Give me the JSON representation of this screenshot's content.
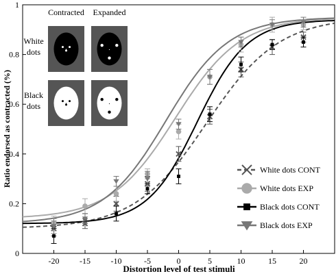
{
  "chart_data": {
    "type": "line",
    "title": "",
    "xlabel": "Distortion level of test stimuli",
    "ylabel": "Ratio endorsed as contracted (%)",
    "xlim": [
      -25,
      25
    ],
    "ylim": [
      0,
      1
    ],
    "x_ticks": [
      "-20",
      "-15",
      "-10",
      "-5",
      "0",
      "5",
      "10",
      "15",
      "20"
    ],
    "y_ticks": [
      "0",
      "0.2",
      "0.4",
      "0.6",
      "0.8",
      "1"
    ],
    "x": [
      -20,
      -15,
      -10,
      -5,
      0,
      5,
      10,
      15,
      20
    ],
    "grid": false,
    "legend_position": "bottom-right",
    "series": [
      {
        "name": "White dots CONT",
        "color": "#555555",
        "line": "dashed",
        "marker": "x",
        "values": [
          0.1,
          0.12,
          0.2,
          0.28,
          0.4,
          0.55,
          0.74,
          0.83,
          0.87
        ],
        "errors": [
          0.03,
          0.02,
          0.03,
          0.03,
          0.03,
          0.03,
          0.03,
          0.03,
          0.02
        ],
        "fit": {
          "min": 0.1,
          "max": 0.95,
          "mid": 4.5,
          "scale": 5.8
        }
      },
      {
        "name": "White dots EXP",
        "color": "#aaaaaa",
        "line": "solid",
        "marker": "circle",
        "values": [
          0.12,
          0.19,
          0.24,
          0.32,
          0.49,
          0.71,
          0.84,
          0.92,
          0.92
        ],
        "errors": [
          0.03,
          0.03,
          0.03,
          0.02,
          0.03,
          0.03,
          0.03,
          0.03,
          0.02
        ],
        "fit": {
          "min": 0.14,
          "max": 0.95,
          "mid": -0.5,
          "scale": 5.2
        }
      },
      {
        "name": "Black dots CONT",
        "color": "#000000",
        "line": "solid",
        "marker": "square",
        "values": [
          0.07,
          0.14,
          0.16,
          0.26,
          0.31,
          0.56,
          0.76,
          0.84,
          0.85
        ],
        "errors": [
          0.03,
          0.02,
          0.03,
          0.02,
          0.03,
          0.03,
          0.03,
          0.02,
          0.02
        ],
        "fit": {
          "min": 0.12,
          "max": 0.94,
          "mid": 3.0,
          "scale": 4.0
        }
      },
      {
        "name": "Black dots EXP",
        "color": "#777777",
        "line": "solid",
        "marker": "triangle-down",
        "values": [
          0.11,
          0.14,
          0.29,
          0.3,
          0.52,
          0.71,
          0.85,
          0.92,
          0.93
        ],
        "errors": [
          0.03,
          0.02,
          0.02,
          0.03,
          0.02,
          0.03,
          0.02,
          0.02,
          0.02
        ],
        "fit": {
          "min": 0.12,
          "max": 0.95,
          "mid": -2.0,
          "scale": 5.0
        }
      }
    ],
    "inset": {
      "column_labels": [
        "Contracted",
        "Expanded"
      ],
      "row_labels": [
        [
          "White",
          "dots"
        ],
        [
          "Black",
          "dots"
        ]
      ]
    }
  }
}
